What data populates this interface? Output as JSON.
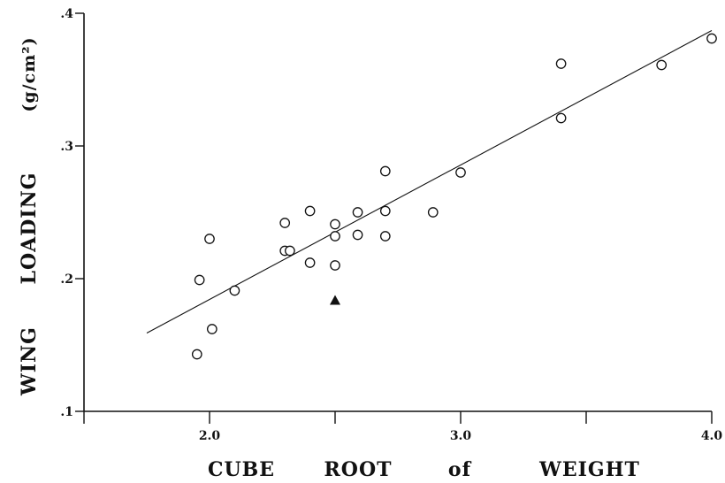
{
  "chart_data": {
    "type": "scatter",
    "title": "",
    "xlabel_words": [
      "CUBE",
      "ROOT",
      "of",
      "WEIGHT"
    ],
    "ylabel_words": [
      "WING",
      "LOADING",
      "(g/cm²)"
    ],
    "x_ticks": [
      {
        "value": 1.5,
        "label": ""
      },
      {
        "value": 2.0,
        "label": "2.0"
      },
      {
        "value": 2.5,
        "label": ""
      },
      {
        "value": 3.0,
        "label": "3.0"
      },
      {
        "value": 3.5,
        "label": ""
      },
      {
        "value": 4.0,
        "label": "4.0"
      }
    ],
    "y_ticks": [
      {
        "value": 0.1,
        "label": ".1"
      },
      {
        "value": 0.2,
        "label": ".2"
      },
      {
        "value": 0.3,
        "label": ".3"
      },
      {
        "value": 0.4,
        "label": ".4"
      }
    ],
    "xlim": [
      1.5,
      4.0
    ],
    "ylim": [
      0.1,
      0.4
    ],
    "grid": false,
    "legend": "none",
    "series": [
      {
        "marker": "open-circle",
        "points": [
          [
            1.95,
            0.143
          ],
          [
            1.96,
            0.199
          ],
          [
            2.0,
            0.23
          ],
          [
            2.01,
            0.162
          ],
          [
            2.1,
            0.191
          ],
          [
            2.3,
            0.221
          ],
          [
            2.3,
            0.242
          ],
          [
            2.32,
            0.221
          ],
          [
            2.4,
            0.251
          ],
          [
            2.4,
            0.212
          ],
          [
            2.5,
            0.241
          ],
          [
            2.5,
            0.232
          ],
          [
            2.5,
            0.21
          ],
          [
            2.59,
            0.25
          ],
          [
            2.59,
            0.233
          ],
          [
            2.7,
            0.281
          ],
          [
            2.7,
            0.251
          ],
          [
            2.7,
            0.232
          ],
          [
            2.89,
            0.25
          ],
          [
            3.0,
            0.28
          ],
          [
            3.4,
            0.362
          ],
          [
            3.4,
            0.321
          ],
          [
            3.8,
            0.361
          ],
          [
            4.0,
            0.381
          ]
        ]
      },
      {
        "marker": "filled-triangle",
        "points": [
          [
            2.5,
            0.184
          ]
        ]
      }
    ],
    "fit_line": {
      "x": [
        1.75,
        4.0
      ],
      "y": [
        0.159,
        0.387
      ]
    },
    "colors": {
      "ink": "#111111",
      "background": "#ffffff"
    }
  }
}
